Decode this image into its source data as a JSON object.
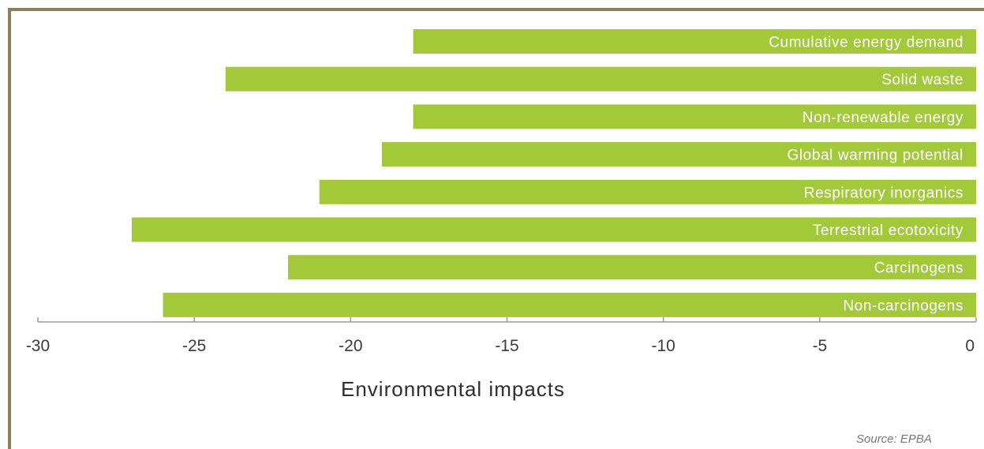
{
  "chart_data": {
    "type": "bar",
    "orientation": "horizontal",
    "categories": [
      "Cumulative energy demand",
      "Solid waste",
      "Non-renewable energy",
      "Global warming potential",
      "Respiratory inorganics",
      "Terrestrial ecotoxicity",
      "Carcinogens",
      "Non-carcinogens"
    ],
    "values": [
      -18,
      -24,
      -18,
      -19,
      -21,
      -27,
      -22,
      -26
    ],
    "xlabel": "Environmental impacts",
    "xlim": [
      -30,
      0
    ],
    "xticks": [
      "-30",
      "-25",
      "-20",
      "-15",
      "-10",
      "-5",
      "0"
    ],
    "grid": false,
    "bar_color": "#a3c93a"
  },
  "source_note": "Source: EPBA",
  "frame_color": "#8c7f5a"
}
